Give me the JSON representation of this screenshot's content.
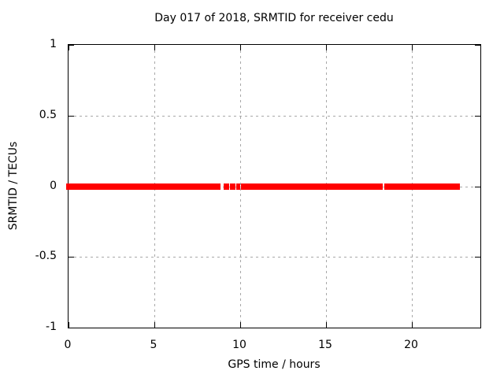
{
  "title": "Day 017 of 2018, SRMTID for receiver cedu",
  "axes": {
    "xlabel": "GPS time / hours",
    "ylabel": "SRMTID / TECUs",
    "x_ticks": [
      0,
      5,
      10,
      15,
      20
    ],
    "y_ticks": [
      1,
      0.5,
      0,
      -0.5,
      -1
    ],
    "xlim": [
      0,
      24
    ],
    "ylim": [
      -1,
      1
    ]
  },
  "colors": {
    "data": "#ff0000",
    "grid": "#a8a8a8",
    "frame": "#000000",
    "background": "#ffffff",
    "text": "#000000"
  },
  "chart_data": {
    "type": "scatter",
    "title": "Day 017 of 2018, SRMTID for receiver cedu",
    "xlabel": "GPS time / hours",
    "ylabel": "SRMTID / TECUs",
    "xlim": [
      0,
      24
    ],
    "ylim": [
      -1,
      1
    ],
    "grid": true,
    "legend": "none",
    "series": [
      {
        "name": "SRMTID",
        "y_value": 0,
        "marker_color": "#ff0000",
        "segments_hours": [
          [
            0.0,
            1.63
          ],
          [
            2.05,
            8.78
          ],
          [
            10.38,
            18.1
          ],
          [
            18.58,
            22.72
          ]
        ],
        "isolated_points_hours": [
          {
            "center": 1.84,
            "width": 0.18
          },
          {
            "center": 9.2,
            "width": 0.3
          },
          {
            "center": 9.56,
            "width": 0.3
          },
          {
            "center": 9.9,
            "width": 0.22
          },
          {
            "center": 10.18,
            "width": 0.26
          },
          {
            "center": 18.22,
            "width": 0.14
          },
          {
            "center": 18.45,
            "width": 0.14
          }
        ]
      }
    ]
  }
}
